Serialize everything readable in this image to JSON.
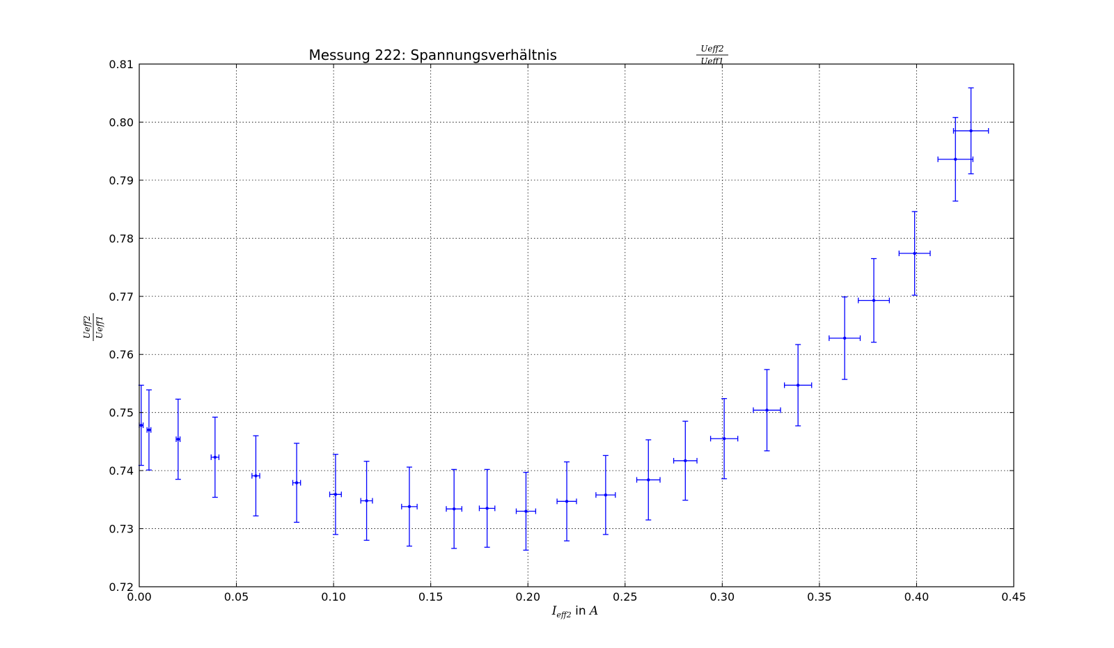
{
  "chart_data": {
    "type": "scatter",
    "title": {
      "text": "Messung 222: Spannungsverhältnis",
      "fraction_num": "Ueff2",
      "fraction_den": "Ueff1"
    },
    "xlabel": {
      "symbol": "I",
      "subscript": "eff2",
      "text": " in ",
      "unit": "A"
    },
    "ylabel": {
      "numerator": "Ueff2",
      "denominator": "Ueff1"
    },
    "xlim": [
      0.0,
      0.45
    ],
    "ylim": [
      0.72,
      0.81
    ],
    "xticks": [
      0.0,
      0.05,
      0.1,
      0.15,
      0.2,
      0.25,
      0.3,
      0.35,
      0.4,
      0.45
    ],
    "yticks": [
      0.72,
      0.73,
      0.74,
      0.75,
      0.76,
      0.77,
      0.78,
      0.79,
      0.8,
      0.81
    ],
    "xtick_labels": [
      "0.00",
      "0.05",
      "0.10",
      "0.15",
      "0.20",
      "0.25",
      "0.30",
      "0.35",
      "0.40",
      "0.45"
    ],
    "ytick_labels": [
      "0.72",
      "0.73",
      "0.74",
      "0.75",
      "0.76",
      "0.77",
      "0.78",
      "0.79",
      "0.80",
      "0.81"
    ],
    "grid": true,
    "series": [
      {
        "color": "#0000ff",
        "points": [
          {
            "x": 0.001,
            "y": 0.7478,
            "xerr": 0.001,
            "yerr": 0.0069
          },
          {
            "x": 0.005,
            "y": 0.747,
            "xerr": 0.001,
            "yerr": 0.0069
          },
          {
            "x": 0.02,
            "y": 0.7454,
            "xerr": 0.001,
            "yerr": 0.0069
          },
          {
            "x": 0.039,
            "y": 0.7423,
            "xerr": 0.002,
            "yerr": 0.0069
          },
          {
            "x": 0.06,
            "y": 0.7391,
            "xerr": 0.002,
            "yerr": 0.0069
          },
          {
            "x": 0.081,
            "y": 0.7379,
            "xerr": 0.002,
            "yerr": 0.0068
          },
          {
            "x": 0.101,
            "y": 0.7359,
            "xerr": 0.003,
            "yerr": 0.0069
          },
          {
            "x": 0.117,
            "y": 0.7348,
            "xerr": 0.003,
            "yerr": 0.0068
          },
          {
            "x": 0.139,
            "y": 0.7338,
            "xerr": 0.004,
            "yerr": 0.0068
          },
          {
            "x": 0.162,
            "y": 0.7334,
            "xerr": 0.004,
            "yerr": 0.0068
          },
          {
            "x": 0.179,
            "y": 0.7335,
            "xerr": 0.004,
            "yerr": 0.0067
          },
          {
            "x": 0.199,
            "y": 0.733,
            "xerr": 0.005,
            "yerr": 0.0067
          },
          {
            "x": 0.22,
            "y": 0.7347,
            "xerr": 0.005,
            "yerr": 0.0068
          },
          {
            "x": 0.24,
            "y": 0.7358,
            "xerr": 0.005,
            "yerr": 0.0068
          },
          {
            "x": 0.262,
            "y": 0.7384,
            "xerr": 0.006,
            "yerr": 0.0069
          },
          {
            "x": 0.281,
            "y": 0.7417,
            "xerr": 0.006,
            "yerr": 0.0068
          },
          {
            "x": 0.301,
            "y": 0.7455,
            "xerr": 0.007,
            "yerr": 0.0069
          },
          {
            "x": 0.323,
            "y": 0.7504,
            "xerr": 0.007,
            "yerr": 0.007
          },
          {
            "x": 0.339,
            "y": 0.7547,
            "xerr": 0.007,
            "yerr": 0.007
          },
          {
            "x": 0.363,
            "y": 0.7628,
            "xerr": 0.008,
            "yerr": 0.0071
          },
          {
            "x": 0.378,
            "y": 0.7693,
            "xerr": 0.008,
            "yerr": 0.0072
          },
          {
            "x": 0.399,
            "y": 0.7774,
            "xerr": 0.008,
            "yerr": 0.0072
          },
          {
            "x": 0.42,
            "y": 0.7936,
            "xerr": 0.009,
            "yerr": 0.0072
          },
          {
            "x": 0.428,
            "y": 0.7985,
            "xerr": 0.009,
            "yerr": 0.0074
          }
        ]
      }
    ]
  }
}
